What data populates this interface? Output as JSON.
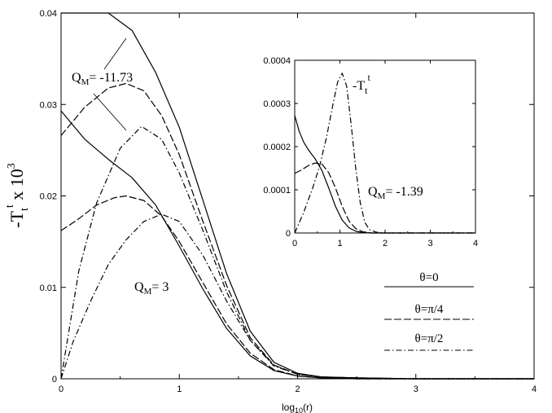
{
  "chart_data": [
    {
      "type": "line",
      "xlabel": "log10(r)",
      "ylabel": "-Tt t x 10^3",
      "xlim": [
        0,
        4
      ],
      "ylim": [
        0,
        0.04
      ],
      "x_ticks": [
        "0",
        "1",
        "2",
        "3",
        "4"
      ],
      "y_ticks": [
        "0",
        "0.01",
        "0.02",
        "0.03",
        "0.04"
      ],
      "grid": false,
      "annotations": [
        "Q",
        "M",
        "= -11.73",
        "Q",
        "M",
        "= 3"
      ],
      "legend": [
        {
          "label": "θ=0",
          "style": "solid"
        },
        {
          "label": "θ=π/4",
          "style": "long-dash"
        },
        {
          "label": "θ=π/2",
          "style": "dot-dash"
        }
      ],
      "series": [
        {
          "group": "QM=-11.73",
          "style": "solid",
          "x": [
            0.0,
            0.2,
            0.4,
            0.6,
            0.8,
            1.0,
            1.2,
            1.4,
            1.6,
            1.8,
            2.0,
            2.2,
            2.5,
            3.0,
            4.0
          ],
          "y": [
            0.0444,
            0.0426,
            0.0408,
            0.0381,
            0.0335,
            0.0275,
            0.0195,
            0.0115,
            0.0052,
            0.0018,
            0.0006,
            0.0002,
            0.0001,
            0.0,
            0.0
          ]
        },
        {
          "group": "QM=-11.73",
          "style": "long-dash",
          "x": [
            0.0,
            0.2,
            0.4,
            0.55,
            0.7,
            0.85,
            1.0,
            1.2,
            1.4,
            1.6,
            1.8,
            2.0,
            2.2,
            2.5,
            3.0,
            4.0
          ],
          "y": [
            0.0266,
            0.0297,
            0.0318,
            0.0323,
            0.0315,
            0.0288,
            0.0245,
            0.0172,
            0.0102,
            0.0045,
            0.0015,
            0.0005,
            0.0002,
            0.0001,
            0.0,
            0.0
          ]
        },
        {
          "group": "QM=-11.73",
          "style": "dot-dash",
          "x": [
            0.0,
            0.15,
            0.3,
            0.5,
            0.68,
            0.85,
            1.0,
            1.2,
            1.4,
            1.6,
            1.8,
            2.0,
            2.2,
            2.5,
            3.0,
            4.0
          ],
          "y": [
            0.0,
            0.0118,
            0.0192,
            0.0252,
            0.0276,
            0.0262,
            0.0225,
            0.0162,
            0.0095,
            0.0042,
            0.0014,
            0.0005,
            0.0002,
            0.0001,
            0.0,
            0.0
          ]
        },
        {
          "group": "QM=3",
          "style": "solid",
          "x": [
            0.0,
            0.2,
            0.4,
            0.6,
            0.8,
            1.0,
            1.2,
            1.4,
            1.6,
            1.8,
            2.0,
            2.2,
            2.5,
            3.0,
            4.0
          ],
          "y": [
            0.0293,
            0.0262,
            0.024,
            0.022,
            0.019,
            0.0145,
            0.0098,
            0.0055,
            0.0025,
            0.0009,
            0.0003,
            0.0001,
            0.0,
            0.0,
            0.0
          ]
        },
        {
          "group": "QM=3",
          "style": "long-dash",
          "x": [
            0.0,
            0.15,
            0.3,
            0.45,
            0.55,
            0.7,
            0.85,
            1.0,
            1.2,
            1.4,
            1.6,
            1.8,
            2.0,
            2.2,
            2.5,
            3.0,
            4.0
          ],
          "y": [
            0.0162,
            0.0175,
            0.019,
            0.0198,
            0.02,
            0.0195,
            0.0178,
            0.015,
            0.0105,
            0.006,
            0.0028,
            0.001,
            0.0003,
            0.0001,
            0.0,
            0.0,
            0.0
          ]
        },
        {
          "group": "QM=3",
          "style": "dot-dash",
          "x": [
            0.0,
            0.1,
            0.25,
            0.4,
            0.55,
            0.7,
            0.85,
            1.0,
            1.2,
            1.4,
            1.6,
            1.8,
            2.0,
            2.2,
            2.5,
            3.0,
            4.0
          ],
          "y": [
            0.0,
            0.004,
            0.0085,
            0.0125,
            0.0152,
            0.0172,
            0.018,
            0.0172,
            0.0135,
            0.0085,
            0.0042,
            0.0015,
            0.0005,
            0.0002,
            0.0,
            0.0,
            0.0
          ]
        }
      ]
    },
    {
      "type": "line",
      "xlim": [
        0,
        4
      ],
      "ylim": [
        0,
        0.0004
      ],
      "x_ticks": [
        "0",
        "1",
        "2",
        "3",
        "4"
      ],
      "y_ticks": [
        "0",
        "0.0001",
        "0.0002",
        "0.0003",
        "0.0004"
      ],
      "grid": false,
      "title_parts": [
        "-T",
        "t",
        "t"
      ],
      "annotations": [
        "Q",
        "M",
        "= -1.39"
      ],
      "series": [
        {
          "style": "solid",
          "x": [
            0.0,
            0.1,
            0.2,
            0.3,
            0.45,
            0.6,
            0.75,
            0.9,
            1.05,
            1.2,
            1.35,
            1.5,
            1.7,
            2.0,
            2.5,
            3.0,
            4.0
          ],
          "y": [
            0.000272,
            0.000235,
            0.00021,
            0.000193,
            0.000172,
            0.000145,
            0.000105,
            6.2e-05,
            3e-05,
            1.2e-05,
            4e-06,
            1e-06,
            0.0,
            0.0,
            0.0,
            0.0,
            0.0
          ]
        },
        {
          "style": "long-dash",
          "x": [
            0.0,
            0.15,
            0.3,
            0.45,
            0.6,
            0.75,
            0.9,
            1.05,
            1.2,
            1.35,
            1.5,
            1.7,
            2.0,
            2.5,
            3.0,
            4.0
          ],
          "y": [
            0.000138,
            0.000146,
            0.000156,
            0.000162,
            0.00016,
            0.00014,
            0.000105,
            6.2e-05,
            2.8e-05,
            1e-05,
            3e-06,
            0.0,
            0.0,
            0.0,
            0.0,
            0.0
          ]
        },
        {
          "style": "dot-dash",
          "x": [
            0.0,
            0.2,
            0.4,
            0.55,
            0.7,
            0.85,
            0.95,
            1.05,
            1.15,
            1.25,
            1.35,
            1.45,
            1.55,
            1.65,
            1.8,
            2.0,
            2.5,
            3.0,
            4.0
          ],
          "y": [
            0.0,
            4.8e-05,
            0.000105,
            0.000155,
            0.00022,
            0.0003,
            0.00035,
            0.00037,
            0.00034,
            0.00025,
            0.00015,
            7e-05,
            2.5e-05,
            8e-06,
            2e-06,
            0.0,
            0.0,
            0.0,
            0.0
          ]
        }
      ]
    }
  ]
}
